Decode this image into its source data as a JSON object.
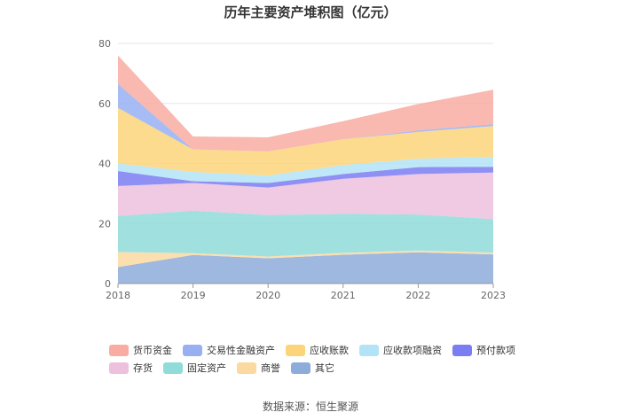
{
  "chart_data": {
    "type": "area",
    "stacked": true,
    "title": "历年主要资产堆积图（亿元）",
    "categories": [
      "2018",
      "2019",
      "2020",
      "2021",
      "2022",
      "2023"
    ],
    "yticks": [
      "0",
      "20",
      "40",
      "60",
      "80"
    ],
    "ylim": [
      0,
      80
    ],
    "series": [
      {
        "name": "其它",
        "color": "#8eacd9",
        "values": [
          5.5,
          9.5,
          8.4,
          9.6,
          10.4,
          9.7
        ]
      },
      {
        "name": "商誉",
        "color": "#fbd9a0",
        "values": [
          5.0,
          0.6,
          0.6,
          0.6,
          0.6,
          0.6
        ]
      },
      {
        "name": "固定资产",
        "color": "#8fdcd9",
        "values": [
          12.0,
          14.2,
          13.8,
          13.0,
          12.0,
          11.2
        ]
      },
      {
        "name": "存货",
        "color": "#edc0dd",
        "values": [
          10.0,
          9.2,
          9.2,
          11.7,
          13.5,
          15.5
        ]
      },
      {
        "name": "预付款项",
        "color": "#7b7df2",
        "values": [
          5.0,
          0.6,
          1.5,
          1.6,
          2.3,
          1.9
        ]
      },
      {
        "name": "应收款项融资",
        "color": "#b3e3f6",
        "values": [
          2.5,
          3.1,
          2.5,
          3.0,
          2.8,
          3.3
        ]
      },
      {
        "name": "应收账款",
        "color": "#fcd57a",
        "values": [
          18.5,
          7.5,
          8.0,
          8.6,
          8.9,
          10.3
        ]
      },
      {
        "name": "交易性金融资产",
        "color": "#98b0f2",
        "values": [
          8.0,
          0,
          0,
          0,
          0.5,
          0.6
        ]
      },
      {
        "name": "货币资金",
        "color": "#f8aca2",
        "values": [
          9.5,
          4.3,
          4.7,
          6.0,
          8.8,
          11.5
        ]
      }
    ],
    "legend": [
      {
        "name": "货币资金",
        "color": "#f8aca2"
      },
      {
        "name": "交易性金融资产",
        "color": "#98b0f2"
      },
      {
        "name": "应收账款",
        "color": "#fcd57a"
      },
      {
        "name": "应收款项融资",
        "color": "#b3e3f6"
      },
      {
        "name": "预付款项",
        "color": "#7b7df2"
      },
      {
        "name": "存货",
        "color": "#edc0dd"
      },
      {
        "name": "固定资产",
        "color": "#8fdcd9"
      },
      {
        "name": "商誉",
        "color": "#fbd9a0"
      },
      {
        "name": "其它",
        "color": "#8eacd9"
      }
    ]
  },
  "source": "数据来源：恒生聚源"
}
